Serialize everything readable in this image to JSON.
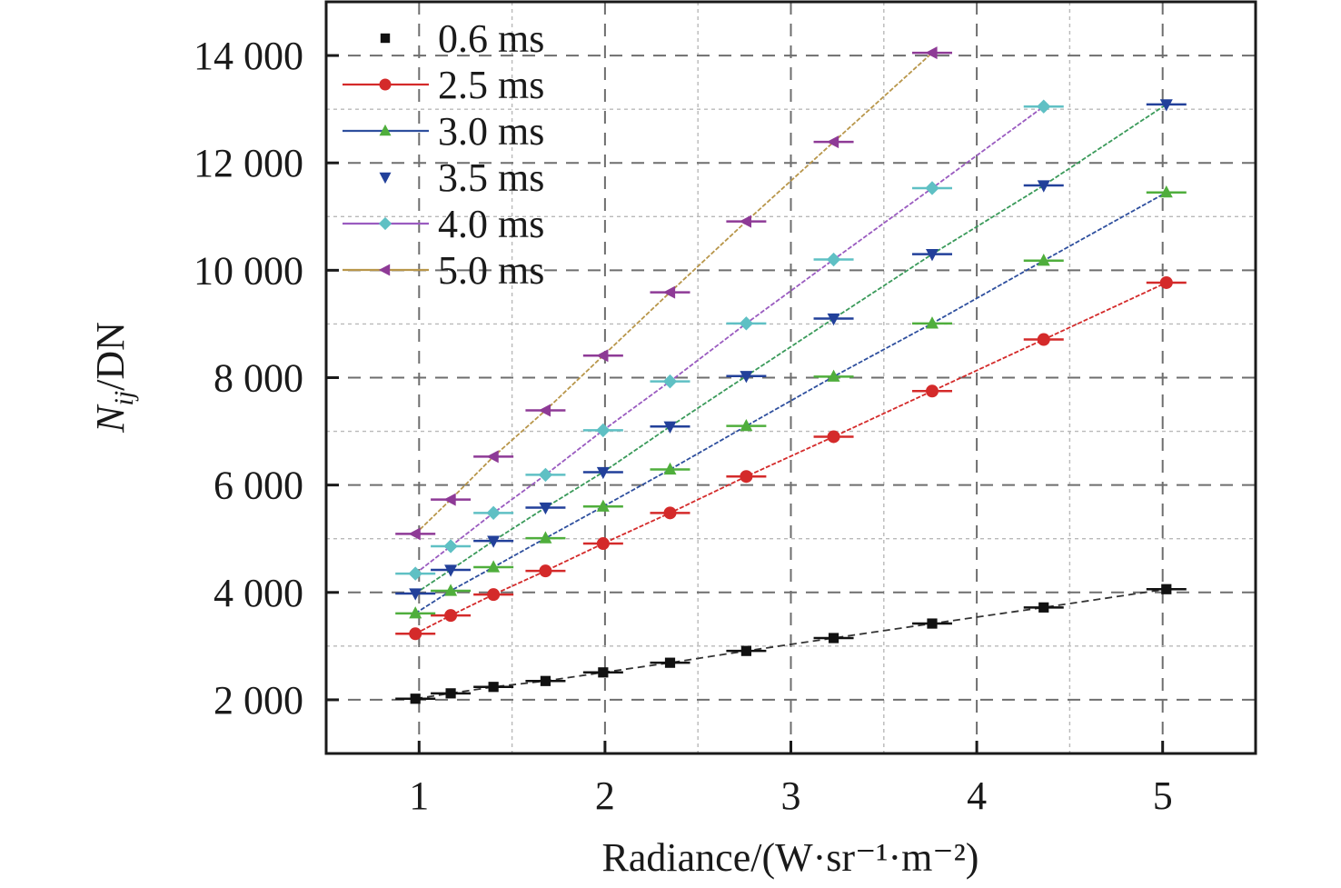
{
  "chart_data": {
    "type": "line",
    "title": "",
    "xlabel": "Radiance/(W·sr⁻¹·m⁻²)",
    "ylabel_main": "N",
    "ylabel_sub": "ij",
    "ylabel_rest": "/DN",
    "xlim": [
      0.5,
      5.5
    ],
    "ylim": [
      1000,
      15000
    ],
    "xticks": [
      1,
      2,
      3,
      4,
      5
    ],
    "xtick_labels": [
      "1",
      "2",
      "3",
      "4",
      "5"
    ],
    "yticks": [
      2000,
      4000,
      6000,
      8000,
      10000,
      12000,
      14000
    ],
    "ytick_labels": [
      "2 000",
      "4 000",
      "6 000",
      "8 000",
      "10 000",
      "12 000",
      "14 000"
    ],
    "grid": true,
    "legend_position": "top-left",
    "series": [
      {
        "name": "0.6 ms",
        "color": "#111111",
        "line_color": "#333333",
        "marker": "square",
        "line_in_legend": false,
        "x": [
          0.98,
          1.17,
          1.4,
          1.68,
          1.99,
          2.35,
          2.76,
          3.23,
          3.76,
          4.36,
          5.02
        ],
        "y": [
          2020,
          2120,
          2240,
          2350,
          2510,
          2690,
          2910,
          3150,
          3420,
          3720,
          4060
        ]
      },
      {
        "name": "2.5 ms",
        "color": "#d42a2a",
        "line_color": "#d42a2a",
        "marker": "circle",
        "line_in_legend": true,
        "x": [
          0.98,
          1.17,
          1.4,
          1.68,
          1.99,
          2.35,
          2.76,
          3.23,
          3.76,
          4.36,
          5.02
        ],
        "y": [
          3230,
          3570,
          3960,
          4400,
          4910,
          5480,
          6160,
          6900,
          7750,
          8710,
          9770
        ]
      },
      {
        "name": "3.0 ms",
        "color": "#4fae3c",
        "line_color": "#2e4f9e",
        "marker": "triangle-up",
        "line_in_legend": true,
        "x": [
          0.98,
          1.17,
          1.4,
          1.68,
          1.99,
          2.35,
          2.76,
          3.23,
          3.76,
          4.36,
          5.02
        ],
        "y": [
          3610,
          4030,
          4470,
          5010,
          5600,
          6290,
          7100,
          8020,
          9010,
          10180,
          11450
        ]
      },
      {
        "name": "3.5 ms",
        "color": "#22409a",
        "line_color": "#3a9a5a",
        "marker": "triangle-down",
        "line_in_legend": false,
        "x": [
          0.98,
          1.17,
          1.4,
          1.68,
          1.99,
          2.35,
          2.76,
          3.23,
          3.76,
          4.36,
          5.02
        ],
        "y": [
          3980,
          4420,
          4960,
          5580,
          6240,
          7090,
          8030,
          9100,
          10300,
          11580,
          13090
        ]
      },
      {
        "name": "4.0 ms",
        "color": "#5fc0c4",
        "line_color": "#9a5bc0",
        "marker": "diamond",
        "line_in_legend": true,
        "x": [
          0.98,
          1.17,
          1.4,
          1.68,
          1.99,
          2.35,
          2.76,
          3.23,
          3.76,
          4.36
        ],
        "y": [
          4350,
          4860,
          5480,
          6190,
          7020,
          7930,
          9010,
          10200,
          11530,
          13050
        ]
      },
      {
        "name": "5.0 ms",
        "color": "#8e3a96",
        "line_color": "#b8964a",
        "marker": "triangle-left",
        "line_in_legend": true,
        "x": [
          0.98,
          1.17,
          1.4,
          1.68,
          1.99,
          2.35,
          2.76,
          3.23,
          3.76
        ],
        "y": [
          5090,
          5730,
          6530,
          7390,
          8410,
          9590,
          10910,
          12390,
          14050
        ]
      }
    ]
  }
}
